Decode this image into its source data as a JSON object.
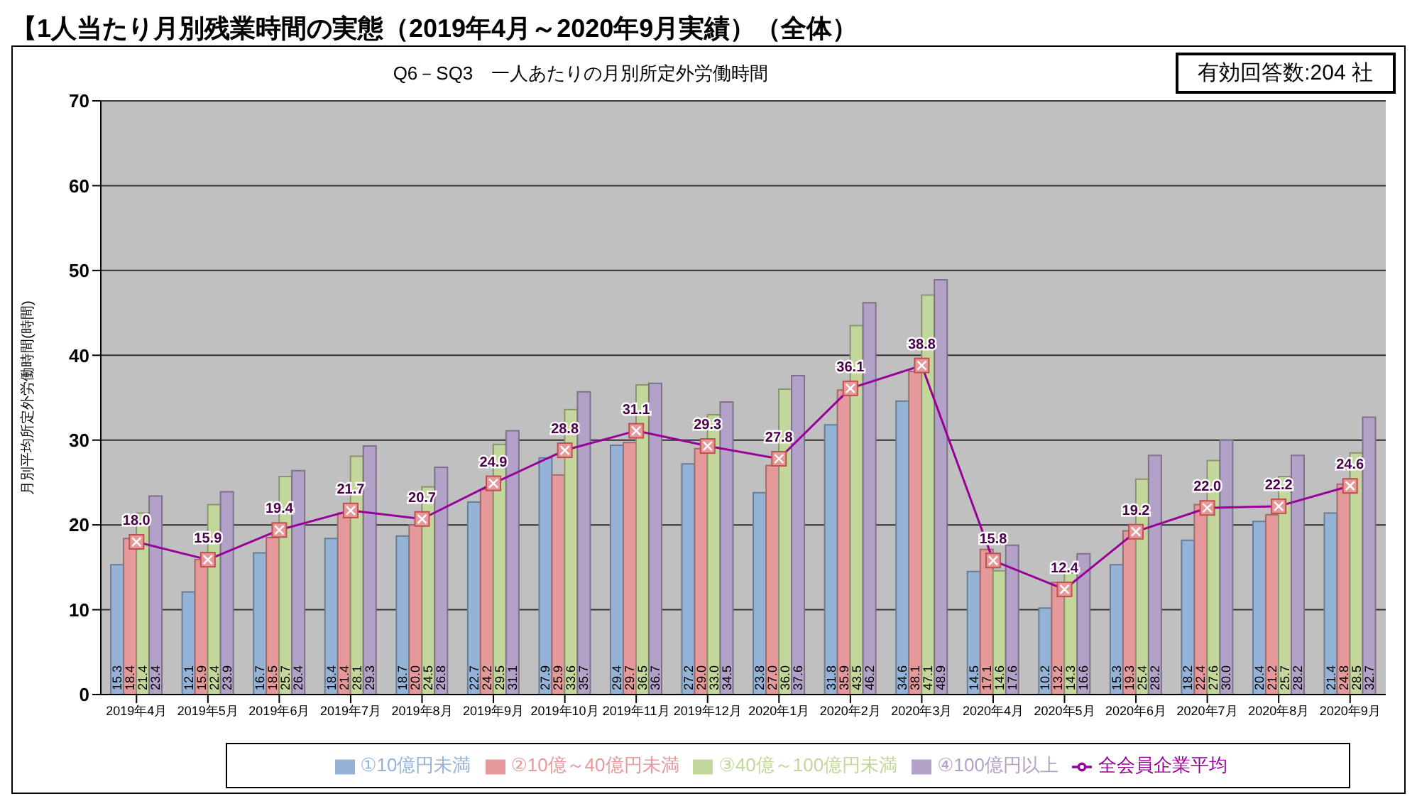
{
  "chart_data": {
    "type": "bar",
    "title": "【1人当たり月別残業時間の実態（2019年4月～2020年9月実績）（全体）",
    "subtitle": "Q6－SQ3　一人あたりの月別所定外労働時間",
    "annotations": [
      "有効回答数:204 社"
    ],
    "ylabel": "月別平均所定外労働時間(時間)",
    "categories": [
      "2019年4月",
      "2019年5月",
      "2019年6月",
      "2019年7月",
      "2019年8月",
      "2019年9月",
      "2019年10月",
      "2019年11月",
      "2019年12月",
      "2020年1月",
      "2020年2月",
      "2020年3月",
      "2020年4月",
      "2020年5月",
      "2020年6月",
      "2020年7月",
      "2020年8月",
      "2020年9月"
    ],
    "series": [
      {
        "name": "①10億円未満",
        "color": "#95b3d7",
        "values": [
          15.3,
          12.1,
          16.7,
          18.4,
          18.7,
          22.7,
          27.9,
          29.4,
          27.2,
          23.8,
          31.8,
          34.6,
          14.5,
          10.2,
          15.3,
          18.2,
          20.4,
          21.4
        ],
        "value_labels": [
          "15.3",
          "12.1",
          "16.7",
          "18.4",
          "18.7",
          "22.7",
          "27.9",
          "29.4",
          "27.2",
          "23.8",
          "31.8",
          "34.6",
          "14.5",
          "10.2",
          "15.3",
          "18.2",
          "20.4",
          "21.4"
        ]
      },
      {
        "name": "②10億～40億円未満",
        "color": "#e6999a",
        "values": [
          18.4,
          15.9,
          18.5,
          21.4,
          20.0,
          24.2,
          25.9,
          29.7,
          29.0,
          27.0,
          35.9,
          38.1,
          17.1,
          13.2,
          19.3,
          22.4,
          21.2,
          24.8
        ],
        "value_labels": [
          "18.4",
          "15.9",
          "18.5",
          "21.4",
          "20.0",
          "24.2",
          "25.9",
          "29.7",
          "29.0",
          "27.0",
          "35.9",
          "38.1",
          "17.1",
          "13.2",
          "19.3",
          "22.4",
          "21.2",
          "24.8"
        ]
      },
      {
        "name": "③40億～100億円未満",
        "color": "#c3d69b",
        "values": [
          21.4,
          22.4,
          25.7,
          28.1,
          24.5,
          29.5,
          33.6,
          36.5,
          33.0,
          36.0,
          43.5,
          47.1,
          14.6,
          14.3,
          25.4,
          27.6,
          25.7,
          28.5
        ],
        "value_labels": [
          "21.4",
          "22.4",
          "25.7",
          "28.1",
          "24.5",
          "29.5",
          "33.6",
          "36.5",
          "33.0",
          "36.0",
          "43.5",
          "47.1",
          "14.6",
          "14.3",
          "25.4",
          "27.6",
          "25.7",
          "28.5"
        ]
      },
      {
        "name": "④100億円以上",
        "color": "#b3a2c7",
        "values": [
          23.4,
          23.9,
          26.4,
          29.3,
          26.8,
          31.1,
          35.7,
          36.7,
          34.5,
          37.6,
          46.2,
          48.9,
          17.6,
          16.6,
          28.2,
          30.0,
          28.2,
          32.7
        ],
        "value_labels": [
          "23.4",
          "23.9",
          "26.4",
          "29.3",
          "26.8",
          "31.1",
          "35.7",
          "36.7",
          "34.5",
          "37.6",
          "46.2",
          "48.9",
          "17.6",
          "16.6",
          "28.2",
          "30.0",
          "28.2",
          "32.7"
        ]
      },
      {
        "name": "全会員企業平均",
        "type": "line",
        "color": "#990099",
        "values": [
          18.0,
          15.9,
          19.4,
          21.7,
          20.7,
          24.9,
          28.8,
          31.1,
          29.3,
          27.8,
          36.1,
          38.8,
          15.8,
          12.4,
          19.2,
          22.0,
          22.2,
          24.6
        ],
        "value_labels": [
          "18.0",
          "15.9",
          "19.4",
          "21.7",
          "20.7",
          "24.9",
          "28.8",
          "31.1",
          "29.3",
          "27.8",
          "36.1",
          "38.8",
          "15.8",
          "12.4",
          "19.2",
          "22.0",
          "22.2",
          "24.6"
        ]
      }
    ],
    "ylim": [
      0,
      70
    ],
    "yticks": [
      0,
      10,
      20,
      30,
      40,
      50,
      60,
      70
    ],
    "grid": "y",
    "legend": "bottom",
    "marker": "square",
    "line_style": "solid"
  }
}
